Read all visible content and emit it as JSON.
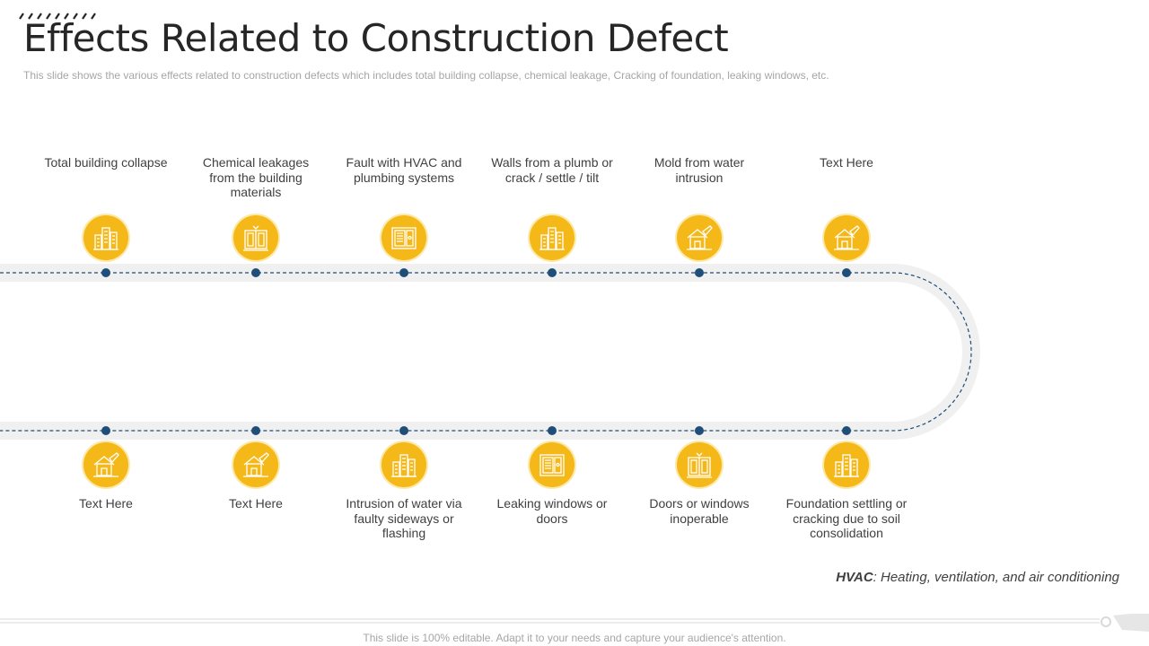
{
  "slide": {
    "title": "Effects Related to Construction Defect",
    "subtitle": "This slide shows the various  effects related to construction defects which includes total building collapse, chemical leakage, Cracking of foundation,  leaking windows,  etc.",
    "footer": "This slide is 100% editable. Adapt it to your needs and capture your audience's attention."
  },
  "colors": {
    "accent": "#f5b819",
    "dot": "#1f4e79",
    "track": "#f0f0f0"
  },
  "top_items": [
    {
      "label": "Total building collapse",
      "icon": "buildings-icon"
    },
    {
      "label": "Chemical leakages from the building materials",
      "icon": "cabinet-icon"
    },
    {
      "label": "Fault with HVAC and plumbing systems",
      "icon": "window-panel-icon"
    },
    {
      "label": "Walls from a plumb or crack / settle / tilt",
      "icon": "buildings-icon"
    },
    {
      "label": "Mold from water intrusion",
      "icon": "house-repair-icon"
    },
    {
      "label": "Text Here",
      "icon": "house-repair-icon"
    }
  ],
  "bottom_items": [
    {
      "label": "Text Here",
      "icon": "house-repair-icon"
    },
    {
      "label": "Text Here",
      "icon": "house-repair-icon"
    },
    {
      "label": "Intrusion of water via faulty sideways or flashing",
      "icon": "buildings-icon"
    },
    {
      "label": "Leaking windows  or doors",
      "icon": "window-panel-icon"
    },
    {
      "label": "Doors or windows inoperable",
      "icon": "cabinet-icon"
    },
    {
      "label": "Foundation settling or cracking due to soil consolidation",
      "icon": "buildings-icon"
    }
  ],
  "note": {
    "term": "HVAC",
    "definition": ": Heating, ventilation,  and air conditioning"
  }
}
